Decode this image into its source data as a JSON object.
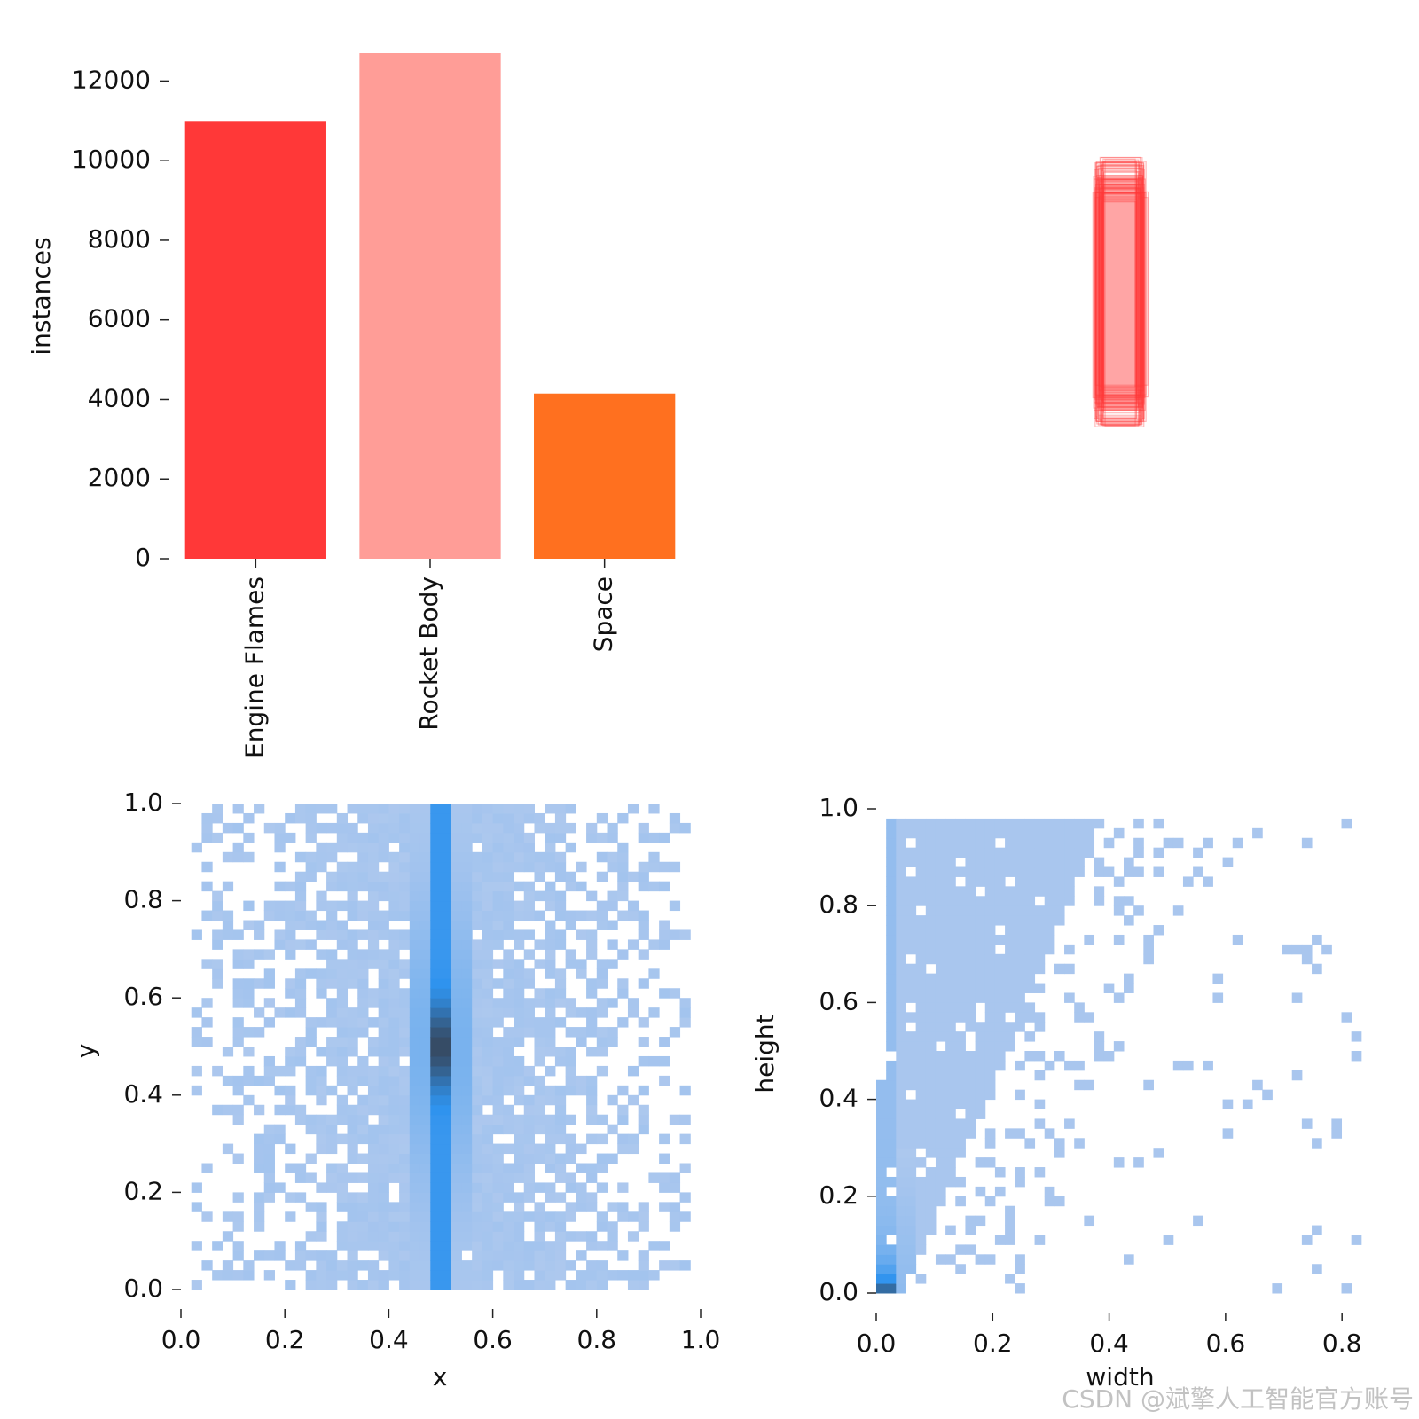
{
  "watermark": "CSDN @斌擎人工智能官方账号",
  "colors": {
    "heat_low": "#adc8ee",
    "heat_mid": "#2f93ee",
    "heat_high": "#364a63"
  },
  "chart_data": [
    {
      "id": "instances-bar",
      "type": "bar",
      "title": "",
      "xlabel": "",
      "ylabel": "instances",
      "categories": [
        "Engine Flames",
        "Rocket Body",
        "Space"
      ],
      "values": [
        11000,
        12700,
        4150
      ],
      "colors": [
        "#ff3838",
        "#ff9d97",
        "#ff701f"
      ],
      "ylim": [
        0,
        12700
      ],
      "yticks": [
        0,
        2000,
        4000,
        6000,
        8000,
        10000,
        12000
      ],
      "ytick_labels": [
        "0",
        "2000",
        "4000",
        "6000",
        "8000",
        "10000",
        "12000"
      ],
      "grid": false
    },
    {
      "id": "box-overlay",
      "type": "other",
      "description_visible": false,
      "center": [
        0.5,
        0.5
      ],
      "box_width_range": [
        0.06,
        0.1
      ],
      "box_height_range": [
        0.36,
        0.52
      ],
      "color": "#ff3838"
    },
    {
      "id": "xy-hist",
      "type": "heatmap",
      "xlabel": "x",
      "ylabel": "y",
      "xlim": [
        0.0,
        1.0
      ],
      "ylim": [
        0.0,
        1.0
      ],
      "xticks": [
        "0.0",
        "0.2",
        "0.4",
        "0.6",
        "0.8",
        "1.0"
      ],
      "yticks": [
        "0.0",
        "0.2",
        "0.4",
        "0.6",
        "0.8",
        "1.0"
      ],
      "bins": 50,
      "density_center_x": 0.5,
      "density_peak_y": 0.5
    },
    {
      "id": "wh-hist",
      "type": "heatmap",
      "xlabel": "width",
      "ylabel": "height",
      "xlim": [
        0.0,
        0.85
      ],
      "ylim": [
        0.0,
        1.0
      ],
      "xticks": [
        "0.0",
        "0.2",
        "0.4",
        "0.6",
        "0.8"
      ],
      "yticks": [
        "0.0",
        "0.2",
        "0.4",
        "0.6",
        "0.8",
        "1.0"
      ],
      "bins": 50,
      "density_peak": [
        0.0,
        0.0
      ]
    }
  ]
}
